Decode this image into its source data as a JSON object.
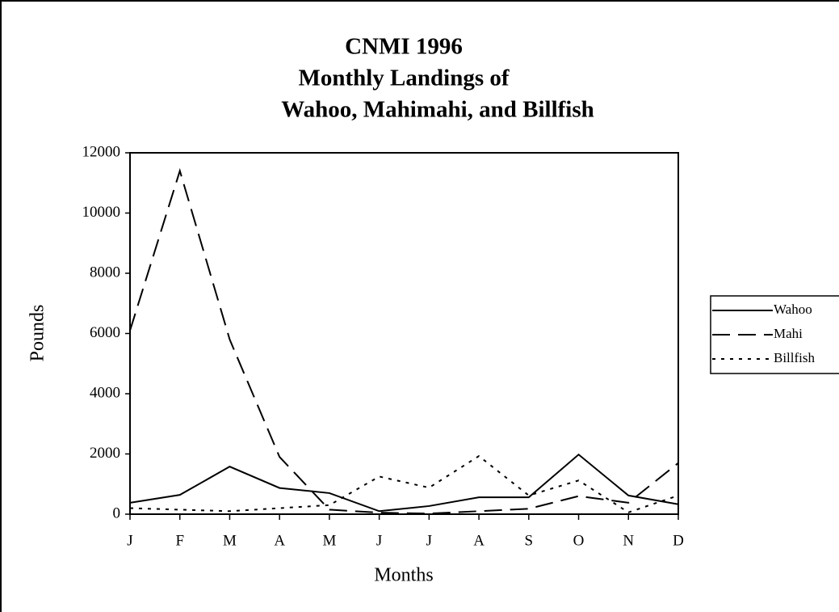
{
  "chart_data": {
    "type": "line",
    "title": [
      "CNMI 1996",
      "Monthly Landings of",
      "Wahoo, Mahimahi, and Billfish"
    ],
    "x_label": "Months",
    "y_label": "Pounds",
    "categories": [
      "J",
      "F",
      "M",
      "A",
      "M",
      "J",
      "J",
      "A",
      "S",
      "O",
      "N",
      "D"
    ],
    "series": [
      {
        "name": "Wahoo",
        "color": "#000000",
        "dash": "solid",
        "values": [
          380,
          640,
          1580,
          870,
          700,
          100,
          270,
          560,
          560,
          1980,
          620,
          330
        ]
      },
      {
        "name": "Mahi",
        "color": "#000000",
        "dash": "dashed",
        "values": [
          6100,
          11400,
          5800,
          1900,
          150,
          50,
          20,
          100,
          180,
          600,
          380,
          1700
        ]
      },
      {
        "name": "Billfish",
        "color": "#000000",
        "dash": "dotted",
        "values": [
          200,
          150,
          100,
          200,
          300,
          1250,
          880,
          1930,
          620,
          1120,
          60,
          620
        ]
      }
    ],
    "ylim": [
      0,
      12000
    ],
    "yticks": [
      0,
      2000,
      4000,
      6000,
      8000,
      10000,
      12000
    ],
    "grid": false,
    "legend": "right"
  }
}
